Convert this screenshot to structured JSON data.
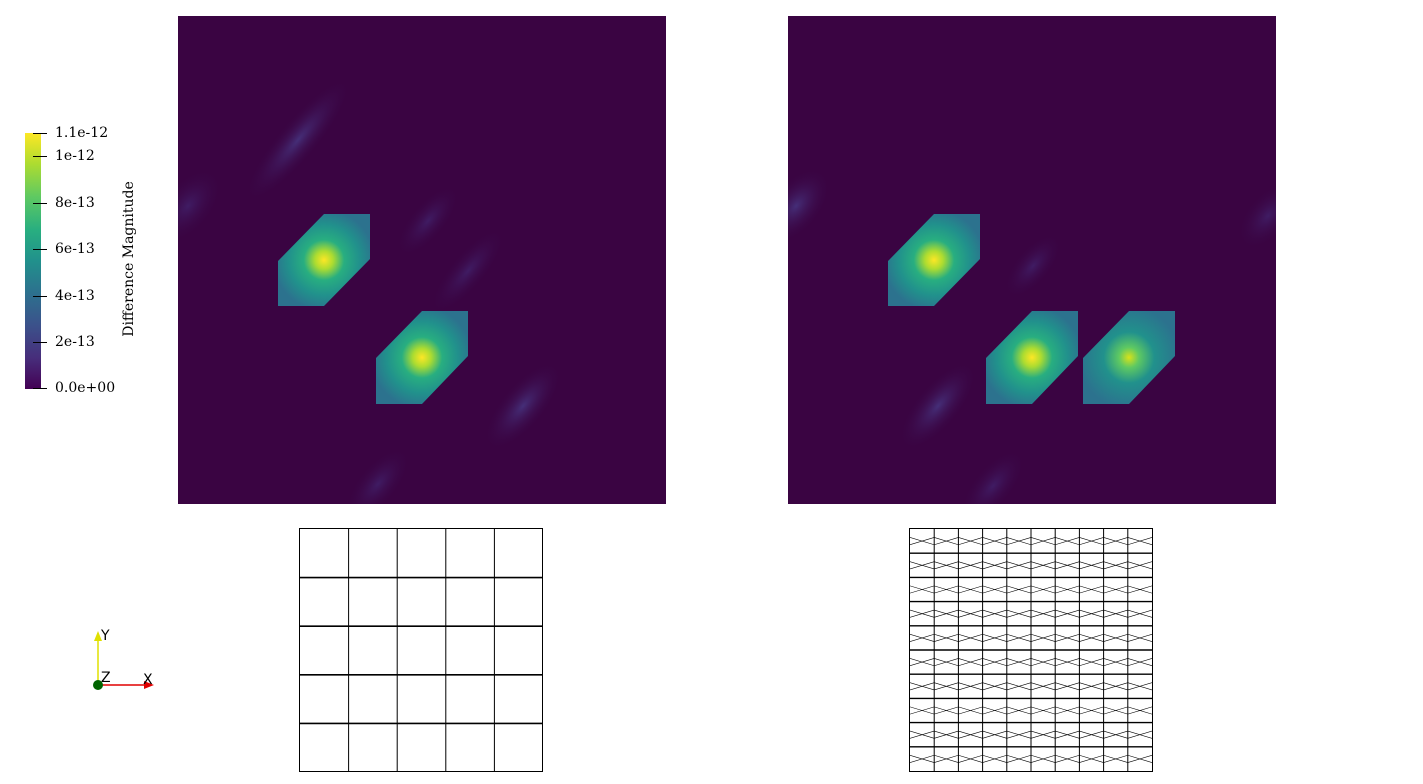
{
  "legend": {
    "title": "Difference Magnitude",
    "ticks": [
      {
        "label": "1.1e-12",
        "value": 1.1e-12
      },
      {
        "label": "1e-12",
        "value": 1e-12
      },
      {
        "label": "8e-13",
        "value": 8e-13
      },
      {
        "label": "6e-13",
        "value": 6e-13
      },
      {
        "label": "4e-13",
        "value": 4e-13
      },
      {
        "label": "2e-13",
        "value": 2e-13
      },
      {
        "label": "0.0e+00",
        "value": 0
      }
    ],
    "range": [
      0,
      1.1e-12
    ],
    "colormap": "viridis",
    "colors": [
      "#440154",
      "#3b528b",
      "#21918c",
      "#5ec962",
      "#fde725"
    ]
  },
  "views": {
    "left_field": {
      "background": "#3a0442"
    },
    "right_field": {
      "background": "#3a0442"
    },
    "left_mesh": {
      "grid": "5x5"
    },
    "right_mesh": {
      "grid": "10x10"
    }
  },
  "orientation": {
    "x_label": "X",
    "y_label": "Y",
    "z_label": "Z",
    "x_color": "#e00000",
    "y_color": "#e0e000",
    "z_color": "#006400"
  }
}
